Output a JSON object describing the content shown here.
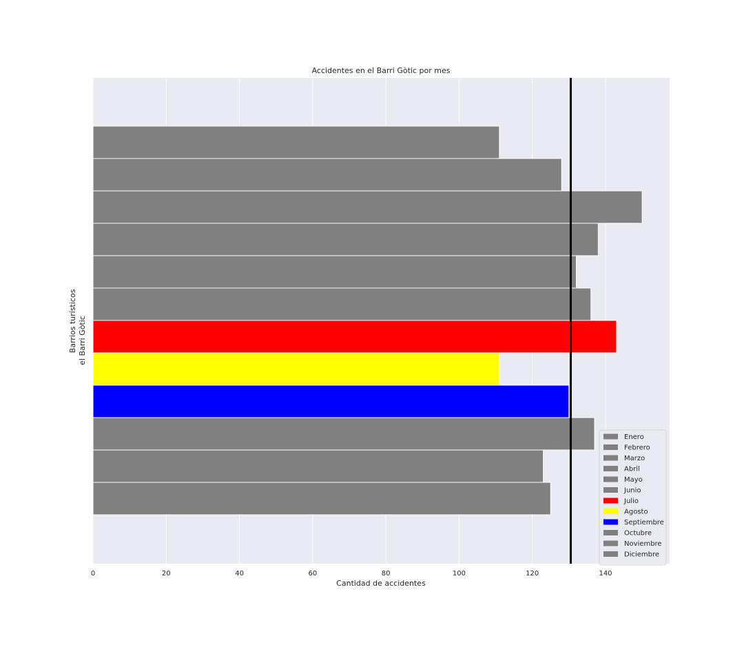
{
  "chart_data": {
    "type": "bar",
    "orientation": "horizontal",
    "title": "Accidentes en el Barri Gòtic por mes",
    "xlabel": "Cantidad de accidentes",
    "ylabel": "Barrios turísticos",
    "category_label": "el Barri Gòtic",
    "xlim": [
      0,
      157.5
    ],
    "xticks": [
      0,
      20,
      40,
      60,
      80,
      100,
      120,
      140
    ],
    "grid": true,
    "legend_position": "lower-right",
    "reference_line": {
      "value": 130.5,
      "color": "#000000"
    },
    "series": [
      {
        "name": "Enero",
        "value": 111,
        "color": "#808080"
      },
      {
        "name": "Febrero",
        "value": 128,
        "color": "#808080"
      },
      {
        "name": "Marzo",
        "value": 150,
        "color": "#808080"
      },
      {
        "name": "Abril",
        "value": 138,
        "color": "#808080"
      },
      {
        "name": "Mayo",
        "value": 132,
        "color": "#808080"
      },
      {
        "name": "Junio",
        "value": 136,
        "color": "#808080"
      },
      {
        "name": "Julio",
        "value": 143,
        "color": "#ff0000"
      },
      {
        "name": "Agosto",
        "value": 111,
        "color": "#ffff00"
      },
      {
        "name": "Septiembre",
        "value": 130,
        "color": "#0000ff"
      },
      {
        "name": "Octubre",
        "value": 137,
        "color": "#808080"
      },
      {
        "name": "Noviembre",
        "value": 123,
        "color": "#808080"
      },
      {
        "name": "Diciembre",
        "value": 125,
        "color": "#808080"
      }
    ]
  }
}
